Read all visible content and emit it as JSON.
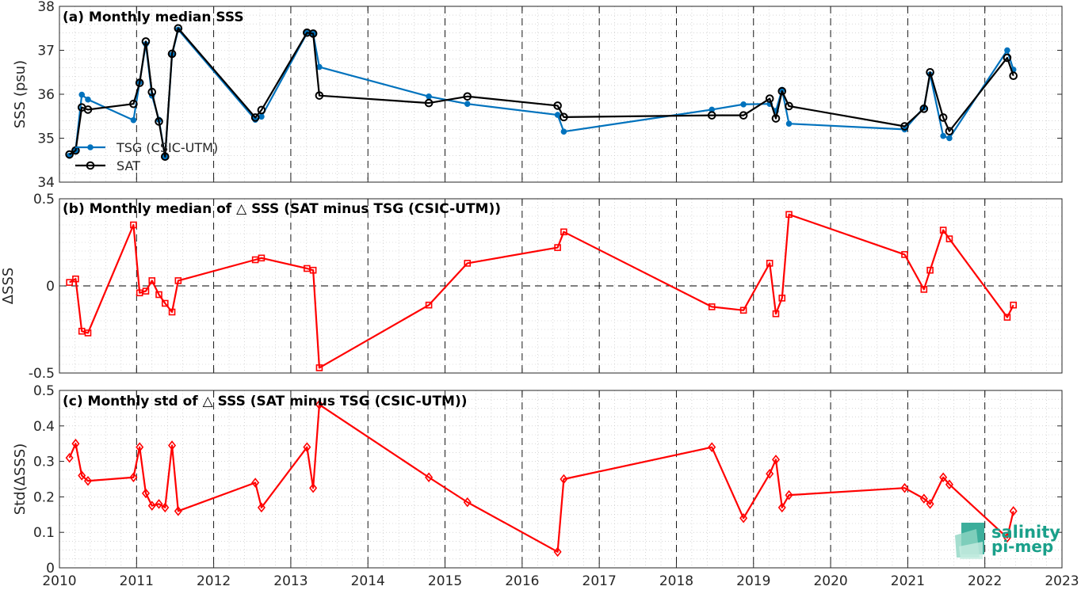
{
  "colors": {
    "tsg": "#0072BD",
    "sat": "#000000",
    "delta": "#FF0000",
    "grid": "#bfbfbf",
    "logo": "#1aa08a"
  },
  "x_axis": {
    "range": [
      2010,
      2023
    ],
    "ticks": [
      "2010",
      "2011",
      "2012",
      "2013",
      "2014",
      "2015",
      "2016",
      "2017",
      "2018",
      "2019",
      "2020",
      "2021",
      "2022",
      "2023"
    ]
  },
  "logo": {
    "line1": "salinity",
    "line2": "pi-mep",
    "icon": "salinity-pimep-logo-icon"
  },
  "chart_data": [
    {
      "type": "line",
      "title": "(a) Monthly median SSS",
      "ylabel": "SSS (psu)",
      "ylim": [
        34,
        38
      ],
      "yticks": [
        "34",
        "35",
        "36",
        "37",
        "38"
      ],
      "legend_position": "bottom-left",
      "grid": true,
      "series": [
        {
          "name": "TSG (CSIC-UTM)",
          "marker": "dot",
          "x": [
            2010.13,
            2010.21,
            2010.29,
            2010.37,
            2010.96,
            2011.04,
            2011.12,
            2011.2,
            2011.29,
            2011.37,
            2011.46,
            2011.54,
            2012.54,
            2012.62,
            2013.21,
            2013.29,
            2013.37,
            2014.79,
            2015.29,
            2016.46,
            2016.54,
            2018.46,
            2018.87,
            2019.21,
            2019.29,
            2019.37,
            2019.46,
            2020.96,
            2021.21,
            2021.29,
            2021.46,
            2021.54,
            2022.29,
            2022.37
          ],
          "y": [
            34.6,
            34.72,
            35.99,
            35.88,
            35.41,
            36.28,
            37.14,
            35.97,
            35.42,
            34.58,
            36.9,
            37.47,
            35.42,
            35.49,
            37.39,
            37.37,
            36.62,
            35.95,
            35.78,
            35.53,
            35.15,
            35.65,
            35.77,
            35.78,
            35.62,
            36.1,
            35.33,
            35.2,
            35.7,
            36.45,
            35.05,
            35.0,
            37.0,
            36.56
          ]
        },
        {
          "name": "SAT",
          "marker": "circle",
          "x": [
            2010.13,
            2010.21,
            2010.29,
            2010.37,
            2010.96,
            2011.04,
            2011.12,
            2011.2,
            2011.29,
            2011.37,
            2011.46,
            2011.54,
            2012.54,
            2012.62,
            2013.21,
            2013.29,
            2013.37,
            2014.79,
            2015.29,
            2016.46,
            2016.54,
            2018.46,
            2018.87,
            2019.21,
            2019.29,
            2019.37,
            2019.46,
            2020.96,
            2021.21,
            2021.29,
            2021.46,
            2021.54,
            2022.29,
            2022.37
          ],
          "y": [
            34.63,
            34.72,
            35.7,
            35.65,
            35.78,
            36.26,
            37.2,
            36.05,
            35.38,
            34.58,
            36.92,
            37.5,
            35.47,
            35.64,
            37.4,
            37.38,
            35.97,
            35.8,
            35.95,
            35.74,
            35.48,
            35.52,
            35.52,
            35.9,
            35.45,
            36.07,
            35.73,
            35.27,
            35.67,
            36.5,
            35.47,
            35.16,
            36.83,
            36.42
          ]
        }
      ]
    },
    {
      "type": "line",
      "title": "(b) Monthly median of △ SSS (SAT minus TSG (CSIC-UTM))",
      "ylabel": "ΔSSS",
      "ylim": [
        -0.5,
        0.5
      ],
      "yticks": [
        "-0.5",
        "0",
        "0.5"
      ],
      "grid": true,
      "zero_line": true,
      "series": [
        {
          "name": "",
          "marker": "square",
          "x": [
            2010.13,
            2010.21,
            2010.29,
            2010.37,
            2010.96,
            2011.04,
            2011.12,
            2011.2,
            2011.29,
            2011.37,
            2011.46,
            2011.54,
            2012.54,
            2012.62,
            2013.21,
            2013.29,
            2013.37,
            2014.79,
            2015.29,
            2016.46,
            2016.54,
            2018.46,
            2018.87,
            2019.21,
            2019.29,
            2019.37,
            2019.46,
            2020.96,
            2021.21,
            2021.29,
            2021.46,
            2021.54,
            2022.29,
            2022.37
          ],
          "y": [
            0.02,
            0.04,
            -0.26,
            -0.27,
            0.35,
            -0.04,
            -0.03,
            0.03,
            -0.05,
            -0.1,
            -0.15,
            0.03,
            0.15,
            0.16,
            0.1,
            0.09,
            -0.47,
            -0.11,
            0.13,
            0.22,
            0.31,
            -0.12,
            -0.14,
            0.13,
            -0.16,
            -0.07,
            0.41,
            0.18,
            -0.02,
            0.09,
            0.32,
            0.27,
            -0.18,
            -0.11
          ]
        }
      ]
    },
    {
      "type": "line",
      "title": "(c) Monthly std of △ SSS (SAT minus TSG (CSIC-UTM))",
      "ylabel": "Std(ΔSSS)",
      "ylim": [
        0,
        0.5
      ],
      "yticks": [
        "0",
        "0.1",
        "0.2",
        "0.3",
        "0.4",
        "0.5"
      ],
      "grid": true,
      "series": [
        {
          "name": "",
          "marker": "diamond",
          "x": [
            2010.13,
            2010.21,
            2010.29,
            2010.37,
            2010.96,
            2011.04,
            2011.12,
            2011.2,
            2011.29,
            2011.37,
            2011.46,
            2011.54,
            2012.54,
            2012.62,
            2013.21,
            2013.29,
            2013.37,
            2014.79,
            2015.29,
            2016.46,
            2016.54,
            2018.46,
            2018.87,
            2019.21,
            2019.29,
            2019.37,
            2019.46,
            2020.96,
            2021.21,
            2021.29,
            2021.46,
            2021.54,
            2022.29,
            2022.37
          ],
          "y": [
            0.31,
            0.35,
            0.26,
            0.245,
            0.255,
            0.34,
            0.21,
            0.175,
            0.18,
            0.17,
            0.345,
            0.16,
            0.24,
            0.17,
            0.34,
            0.225,
            0.46,
            0.255,
            0.185,
            0.045,
            0.25,
            0.34,
            0.14,
            0.265,
            0.305,
            0.17,
            0.205,
            0.225,
            0.195,
            0.18,
            0.255,
            0.235,
            0.085,
            0.16
          ]
        }
      ]
    }
  ]
}
